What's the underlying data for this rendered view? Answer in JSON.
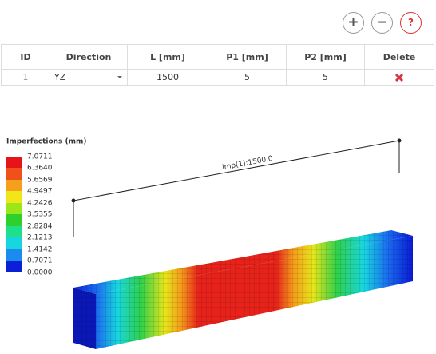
{
  "toolbar": {
    "buttons": [
      "+",
      "−",
      "?"
    ]
  },
  "table": {
    "headers": [
      "ID",
      "Direction",
      "L [mm]",
      "P1 [mm]",
      "P2 [mm]",
      "Delete"
    ],
    "rows": [
      [
        "1",
        "YZ",
        "1500",
        "5",
        "5"
      ]
    ]
  },
  "legend": {
    "title": "Imperfections (mm)",
    "labels": [
      "7.0711",
      "6.3640",
      "5.6569",
      "4.9497",
      "4.2426",
      "3.5355",
      "2.8284",
      "2.1213",
      "1.4142",
      "0.7071",
      "0.0000"
    ]
  },
  "annotation": "imp(1):1500.0"
}
